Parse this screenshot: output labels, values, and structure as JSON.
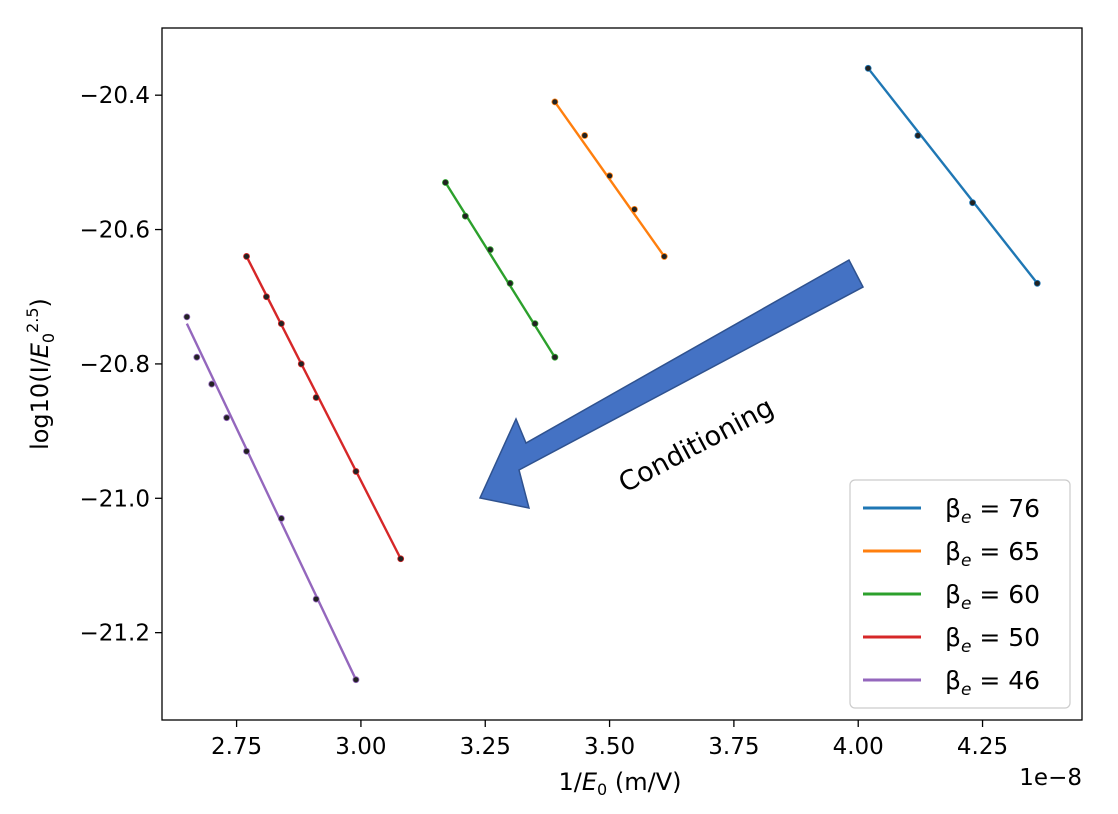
{
  "chart_data": {
    "type": "line",
    "title": "",
    "xlabel": "1/E_0 (m/V)",
    "ylabel": "log10(I/E_0^2.5)",
    "x_offset_label": "1e−8",
    "xlim": [
      2.6,
      4.45
    ],
    "ylim": [
      -21.33,
      -20.3
    ],
    "xticks": [
      2.75,
      3.0,
      3.25,
      3.5,
      3.75,
      4.0,
      4.25
    ],
    "xtick_labels": [
      "2.75",
      "3.00",
      "3.25",
      "3.50",
      "3.75",
      "4.00",
      "4.25"
    ],
    "yticks": [
      -20.4,
      -20.6,
      -20.8,
      -21.0,
      -21.2
    ],
    "ytick_labels": [
      "−20.4",
      "−20.6",
      "−20.8",
      "−21.0",
      "−21.2"
    ],
    "grid": false,
    "legend_position": "bottom-right",
    "annotation": "Conditioning",
    "series": [
      {
        "name": "β_e = 76",
        "color": "#1f77b4",
        "x": [
          4.02,
          4.12,
          4.23,
          4.36
        ],
        "y": [
          -20.36,
          -20.46,
          -20.56,
          -20.68
        ],
        "fit": [
          [
            4.02,
            -20.36
          ],
          [
            4.36,
            -20.68
          ]
        ]
      },
      {
        "name": "β_e = 65",
        "color": "#ff7f0e",
        "x": [
          3.39,
          3.45,
          3.5,
          3.55,
          3.61
        ],
        "y": [
          -20.41,
          -20.46,
          -20.52,
          -20.57,
          -20.64
        ],
        "fit": [
          [
            3.39,
            -20.41
          ],
          [
            3.61,
            -20.64
          ]
        ]
      },
      {
        "name": "β_e = 60",
        "color": "#2ca02c",
        "x": [
          3.17,
          3.21,
          3.26,
          3.3,
          3.35,
          3.39
        ],
        "y": [
          -20.53,
          -20.58,
          -20.63,
          -20.68,
          -20.74,
          -20.79
        ],
        "fit": [
          [
            3.17,
            -20.53
          ],
          [
            3.39,
            -20.79
          ]
        ]
      },
      {
        "name": "β_e = 50",
        "color": "#d62728",
        "x": [
          2.77,
          2.81,
          2.84,
          2.88,
          2.91,
          2.99,
          3.08
        ],
        "y": [
          -20.64,
          -20.7,
          -20.74,
          -20.8,
          -20.85,
          -20.96,
          -21.09
        ],
        "fit": [
          [
            2.77,
            -20.64
          ],
          [
            3.08,
            -21.09
          ]
        ]
      },
      {
        "name": "β_e = 46",
        "color": "#9467bd",
        "x": [
          2.65,
          2.67,
          2.7,
          2.73,
          2.77,
          2.84,
          2.91,
          2.99
        ],
        "y": [
          -20.73,
          -20.79,
          -20.83,
          -20.88,
          -20.93,
          -21.03,
          -21.15,
          -21.27
        ],
        "fit": [
          [
            2.65,
            -20.74
          ],
          [
            2.99,
            -21.27
          ]
        ]
      }
    ]
  }
}
